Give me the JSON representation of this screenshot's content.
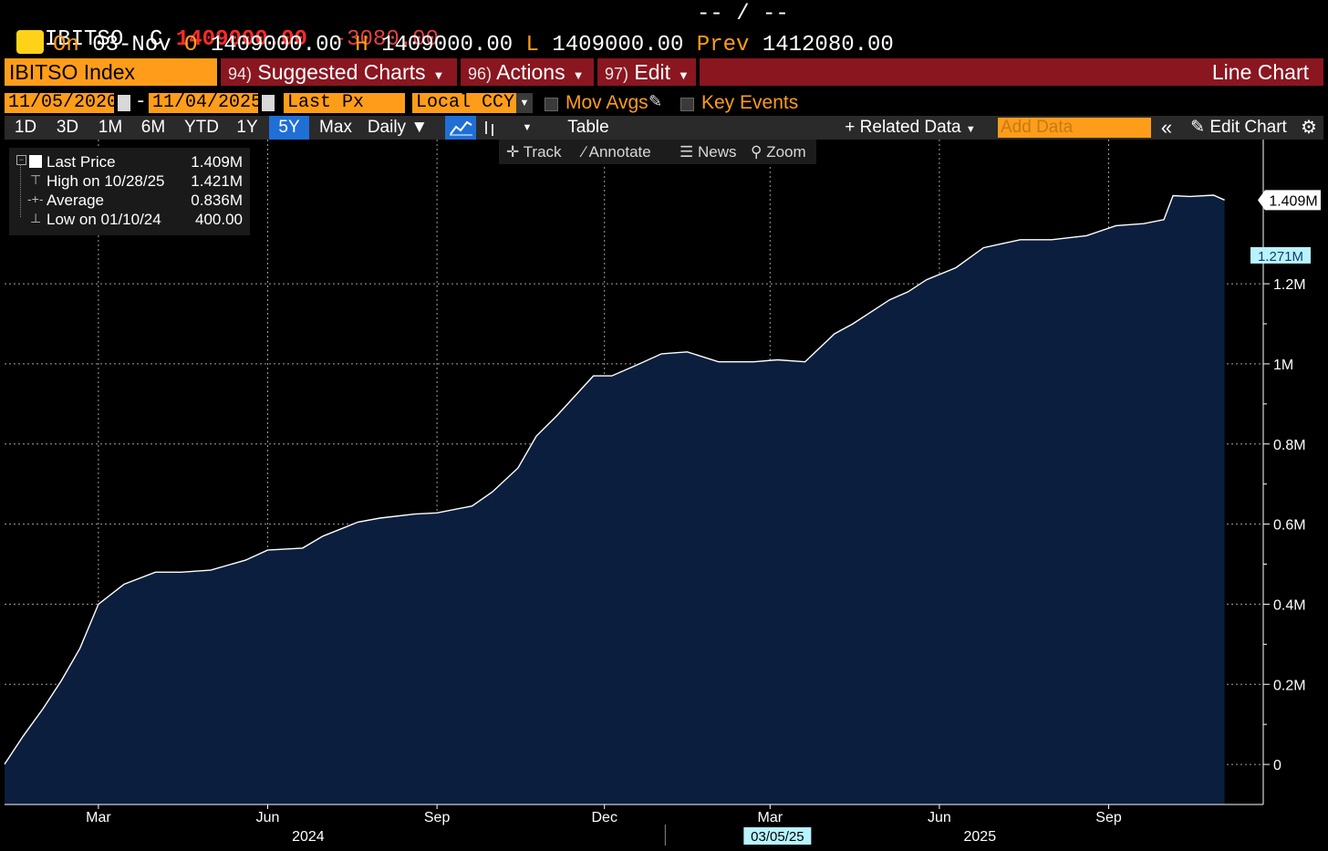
{
  "quote": {
    "ticker": "IBITSO",
    "close_label": "C",
    "close": "1409000.00",
    "change": "-3080.00",
    "bid_ask": "-- / --",
    "on_label": "On",
    "date": "03-Nov",
    "open_label": "O",
    "open": "1409000.00",
    "high_label": "H",
    "high": "1409000.00",
    "low_label": "L",
    "low": "1409000.00",
    "prev_label": "Prev",
    "prev": "1412080.00"
  },
  "menu": {
    "security": "IBITSO Index",
    "suggested_num": "94)",
    "suggested": "Suggested Charts",
    "actions_num": "96)",
    "actions": "Actions",
    "edit_num": "97)",
    "edit": "Edit",
    "chart_type": "Line Chart"
  },
  "controls": {
    "start_date": "11/05/2020",
    "date_sep": "-",
    "end_date": "11/04/2025",
    "field": "Last Px",
    "currency": "Local CCY",
    "mov_avgs": "Mov Avgs",
    "key_events": "Key Events"
  },
  "toolbar": {
    "ranges": [
      "1D",
      "3D",
      "1M",
      "6M",
      "YTD",
      "1Y",
      "5Y",
      "Max"
    ],
    "selected_range": "5Y",
    "frequency": "Daily",
    "table": "Table",
    "related_data": "Related Data",
    "add_data_placeholder": "Add Data",
    "edit_chart": "Edit Chart"
  },
  "subtoolbar": {
    "track": "Track",
    "annotate": "Annotate",
    "news": "News",
    "zoom": "Zoom"
  },
  "legend": {
    "last_label": "Last Price",
    "last_value": "1.409M",
    "high_label": "High on 10/28/25",
    "high_value": "1.421M",
    "avg_label": "Average",
    "avg_value": "0.836M",
    "low_label": "Low on 01/10/24",
    "low_value": "400.00"
  },
  "colors": {
    "accent_orange": "#ff9d1a",
    "menu_red": "#8a1620",
    "area_fill": "#0b1e3d",
    "line": "#ffffff",
    "marker_cyan": "#b8f4ff"
  },
  "chart_data": {
    "type": "area",
    "series": [
      {
        "x": [
          "2024-01-10",
          "2024-01-20",
          "2024-01-31",
          "2024-02-10",
          "2024-02-20",
          "2024-03-01",
          "2024-03-15",
          "2024-04-01",
          "2024-04-15",
          "2024-05-01",
          "2024-05-20",
          "2024-06-01",
          "2024-06-20",
          "2024-07-01",
          "2024-07-20",
          "2024-08-01",
          "2024-08-20",
          "2024-09-01",
          "2024-09-20",
          "2024-10-01",
          "2024-10-15",
          "2024-10-25",
          "2024-11-05",
          "2024-11-15",
          "2024-11-25",
          "2024-12-05",
          "2024-12-20",
          "2025-01-01",
          "2025-01-15",
          "2025-02-01",
          "2025-02-20",
          "2025-03-05",
          "2025-03-20",
          "2025-04-05",
          "2025-04-15",
          "2025-04-25",
          "2025-05-05",
          "2025-05-15",
          "2025-05-25",
          "2025-06-10",
          "2025-06-25",
          "2025-07-05",
          "2025-07-15",
          "2025-08-01",
          "2025-08-20",
          "2025-09-05",
          "2025-09-20",
          "2025-10-01",
          "2025-10-06",
          "2025-10-15",
          "2025-10-28",
          "2025-11-03"
        ],
        "y": [
          400,
          70000,
          140000,
          210000,
          290000,
          400000,
          450000,
          480000,
          480000,
          485000,
          510000,
          535000,
          540000,
          570000,
          605000,
          615000,
          625000,
          628000,
          645000,
          680000,
          740000,
          820000,
          870000,
          920000,
          970000,
          970000,
          1000000,
          1025000,
          1030000,
          1005000,
          1005000,
          1010000,
          1005000,
          1075000,
          1100000,
          1130000,
          1160000,
          1180000,
          1210000,
          1240000,
          1290000,
          1300000,
          1310000,
          1310000,
          1320000,
          1345000,
          1350000,
          1360000,
          1420000,
          1418000,
          1421000,
          1409000
        ]
      }
    ],
    "y_ticks": [
      "0",
      "0.2M",
      "0.4M",
      "0.6M",
      "0.8M",
      "1M",
      "1.2M"
    ],
    "ylim": [
      -100000,
      1560000
    ],
    "x_ticks": [
      "Mar",
      "Jun",
      "Sep",
      "Dec",
      "Mar",
      "Jun",
      "Sep"
    ],
    "x_tick_dates": [
      "2024-03-01",
      "2024-06-01",
      "2024-09-01",
      "2024-12-01",
      "2025-03-01",
      "2025-06-01",
      "2025-09-01"
    ],
    "x_year_labels": [
      "2024",
      "2025"
    ],
    "x_year_dates": [
      "2024-06-23",
      "2025-06-23"
    ],
    "xlim": [
      "2024-01-10",
      "2025-11-24"
    ],
    "last_price_label": "1.409M",
    "last_price": 1409000,
    "marker_label": "1.271M",
    "marker_value": 1271000,
    "cursor_date_label": "03/05/25",
    "grid": true
  }
}
